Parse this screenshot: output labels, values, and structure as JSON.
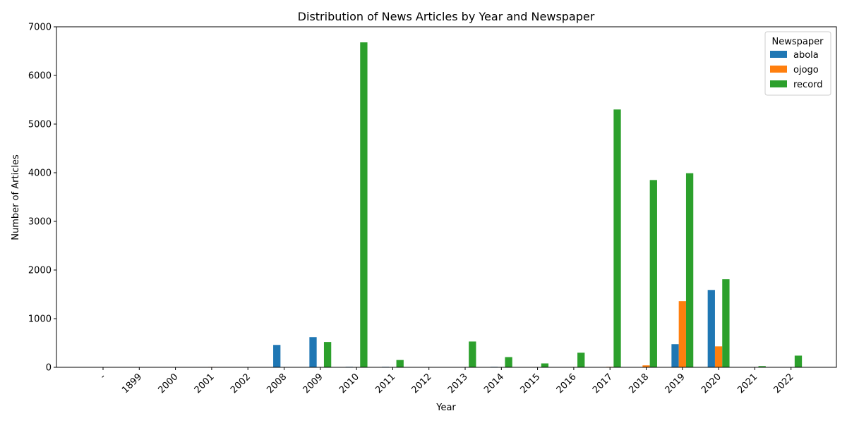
{
  "chart_data": {
    "type": "bar",
    "title": "Distribution of News Articles by Year and Newspaper",
    "xlabel": "Year",
    "ylabel": "Number of Articles",
    "ylim": [
      0,
      7000
    ],
    "yticks": [
      "0",
      "1000",
      "2000",
      "3000",
      "4000",
      "5000",
      "6000",
      "7000"
    ],
    "categories": [
      "-",
      "1899",
      "2000",
      "2001",
      "2002",
      "2008",
      "2009",
      "2010",
      "2011",
      "2012",
      "2013",
      "2014",
      "2015",
      "2016",
      "2017",
      "2018",
      "2019",
      "2020",
      "2021",
      "2022"
    ],
    "legend": {
      "title": "Newspaper",
      "position": "top-right"
    },
    "grid": false,
    "series": [
      {
        "name": "abola",
        "color": "#1f77b4",
        "values": [
          0,
          0,
          0,
          0,
          0,
          460,
          620,
          10,
          10,
          0,
          0,
          10,
          0,
          0,
          0,
          0,
          475,
          1590,
          0,
          0
        ]
      },
      {
        "name": "ojogo",
        "color": "#ff7f0e",
        "values": [
          0,
          0,
          0,
          8,
          0,
          0,
          0,
          0,
          0,
          0,
          0,
          0,
          0,
          8,
          10,
          40,
          1360,
          430,
          0,
          0
        ]
      },
      {
        "name": "record",
        "color": "#2ca02c",
        "values": [
          0,
          0,
          0,
          0,
          0,
          0,
          520,
          6680,
          150,
          0,
          530,
          210,
          80,
          300,
          5300,
          3850,
          3990,
          1810,
          25,
          240
        ]
      }
    ]
  }
}
